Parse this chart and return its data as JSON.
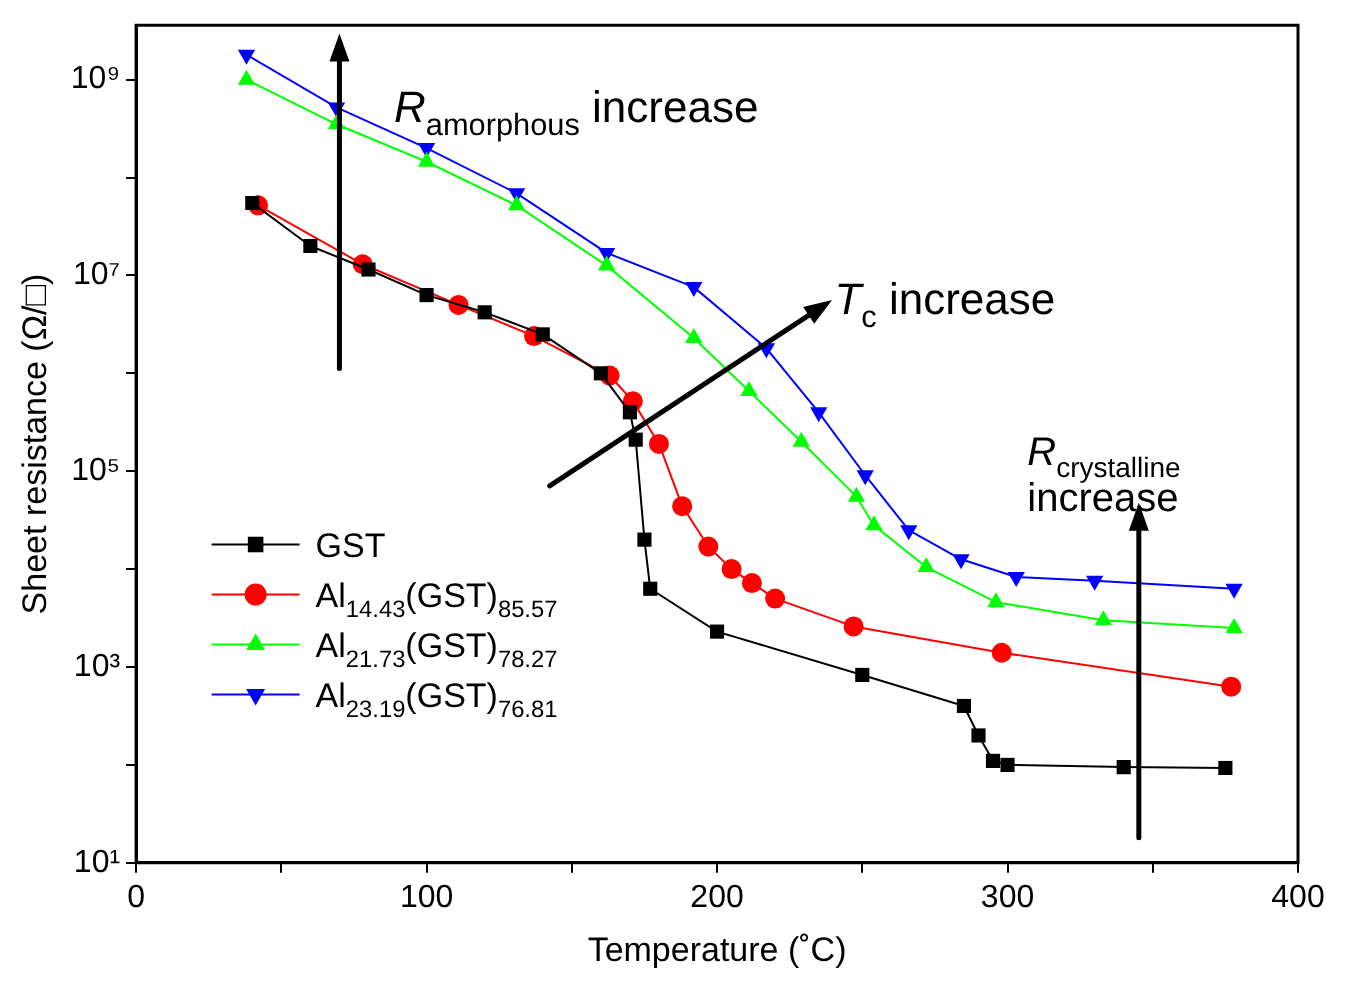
{
  "chart_data": {
    "type": "line",
    "xlabel": "Temperature (˚C)",
    "ylabel": "Sheet resistance (Ω/□)",
    "xlim": [
      0,
      400
    ],
    "xticks": [
      0,
      {
        "value": 50,
        "label": null
      },
      100,
      {
        "value": 150,
        "label": null
      },
      200,
      {
        "value": 250,
        "label": null
      },
      300,
      {
        "value": 350,
        "label": null
      },
      400
    ],
    "ylim": [
      10,
      3600000000
    ],
    "yticks": [
      {
        "value": 10,
        "label": "10¹"
      },
      {
        "value": 100,
        "label": null
      },
      {
        "value": 1000,
        "label": "10³"
      },
      {
        "value": 10000,
        "label": null
      },
      {
        "value": 100000,
        "label": "10⁵"
      },
      {
        "value": 1000000,
        "label": null
      },
      {
        "value": 10000000,
        "label": "10⁷"
      },
      {
        "value": 100000000,
        "label": null
      },
      {
        "value": 1000000000,
        "label": "10⁹"
      }
    ],
    "log": "y",
    "grid": false,
    "legend": "bottom left",
    "line_style": "solid",
    "annotations": [
      "R$_{amorphous}$ increase",
      "T$_{c}$ increase",
      "R$_{crystalline}$ increase"
    ],
    "series": [
      {
        "name": "GST",
        "color": "#000000",
        "marker": "square",
        "x": [
          40,
          60,
          80,
          100,
          120,
          140,
          160,
          170,
          172,
          175,
          177,
          200,
          250,
          285,
          290,
          295,
          300,
          340,
          375
        ],
        "values": [
          55000000,
          20000000,
          11500000,
          6300000,
          4200000,
          2500000,
          1000000,
          400000,
          210000,
          20000,
          6300,
          2300,
          830,
          400,
          200,
          110,
          100,
          95,
          93
        ]
      },
      {
        "name": "Al$_{14.43}$(GST)$_{85.57}$",
        "color": "#ff0000",
        "marker": "circle",
        "x": [
          42,
          78,
          111,
          137,
          163,
          171,
          180,
          188,
          197,
          205,
          212,
          220,
          247,
          298,
          377
        ],
        "values": [
          52000000,
          13000000,
          5000000,
          2400000,
          950000,
          520000,
          190000,
          44000,
          17000,
          10000,
          7200,
          5000,
          2600,
          1400,
          630
        ]
      },
      {
        "name": "Al$_{21.73}$(GST)$_{78.27}$",
        "color": "#00ff00",
        "marker": "triangle",
        "x": [
          38,
          69,
          100,
          131,
          162,
          192,
          211,
          229,
          248,
          254,
          272,
          296,
          333,
          378
        ],
        "values": [
          1000000000,
          350000000,
          145000000,
          52000000,
          12600000,
          2300000,
          660000,
          200000,
          55000,
          28000,
          10500,
          4600,
          3000,
          2500
        ]
      },
      {
        "name": "Al$_{23.19}$(GST)$_{76.81}$",
        "color": "#0000ff",
        "marker": "triangle-down",
        "x": [
          38,
          69,
          100,
          131,
          162,
          192,
          217,
          235,
          251,
          266,
          284,
          303,
          330,
          378
        ],
        "values": [
          1800000000,
          520000000,
          200000000,
          69000000,
          17000000,
          7600000,
          1800000,
          400000,
          91000,
          25000,
          12600,
          8300,
          7600,
          6300
        ]
      }
    ]
  }
}
